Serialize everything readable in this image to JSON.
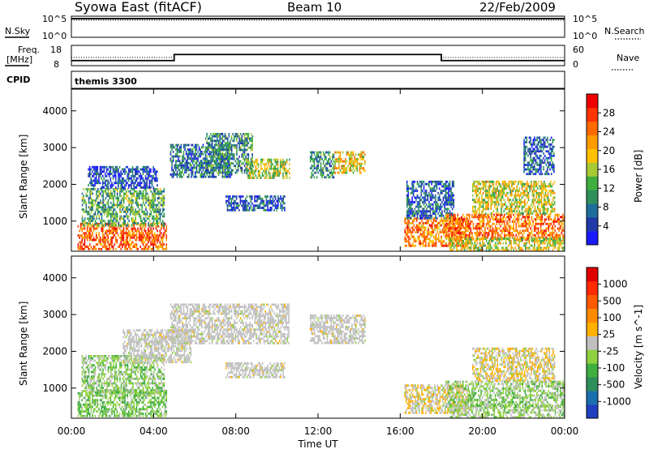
{
  "header": {
    "station": "Syowa East (fitACF)",
    "beam": "Beam 10",
    "date": "22/Feb/2009"
  },
  "labels": {
    "nsky": "N.Sky",
    "nsearch": "N.Search",
    "freq_line1": "Freq.",
    "freq_line2": "[MHz]",
    "nave": "Nave",
    "cpid": "CPID",
    "cpid_value": "themis 3300",
    "nsky_top": "10^5",
    "nsky_bottom": "10^0",
    "nsearch_top": "10^5",
    "nsearch_bottom": "10^0",
    "freq_top": "18",
    "freq_bottom": "8",
    "nave_top": "60",
    "nave_bottom": "0"
  },
  "colors": {
    "power_scale": [
      "#1a1aff",
      "#203aa8",
      "#1f6e99",
      "#2f8f5a",
      "#3fae3f",
      "#a7c934",
      "#ffc000",
      "#ff9a00",
      "#ff6a00",
      "#ff3300",
      "#ee0000"
    ],
    "velocity_scale": [
      "#2040c0",
      "#1a6fb0",
      "#2f8f5a",
      "#3fae3f",
      "#8fd13f",
      "#c0c0c0",
      "#ffb000",
      "#ff8a00",
      "#ff5a00",
      "#ff2a00",
      "#e00000"
    ]
  },
  "chart_data": [
    {
      "type": "line",
      "panel": "N.Sky / N.Search",
      "x": [
        "00:00",
        "24:00"
      ],
      "series": [
        {
          "name": "N.Sky",
          "values": [
            5,
            5
          ]
        },
        {
          "name": "N.Search",
          "values": [
            5,
            5
          ]
        }
      ],
      "ylim_labels": [
        "10^0",
        "10^5"
      ]
    },
    {
      "type": "line",
      "panel": "Freq. / Nave",
      "series": [
        {
          "name": "Freq.",
          "x": [
            0,
            5,
            5,
            18,
            18,
            24
          ],
          "values": [
            10.5,
            10.5,
            13.5,
            13.5,
            10.5,
            10.5
          ]
        },
        {
          "name": "Nave",
          "x": [
            0,
            5,
            5,
            18,
            18,
            24
          ],
          "values": [
            22,
            22,
            30,
            30,
            22,
            22
          ]
        }
      ],
      "ylim_freq": [
        8,
        18
      ],
      "ylim_nave": [
        0,
        60
      ]
    },
    {
      "type": "heatmap",
      "panel": "Power",
      "ylabel": "Slant Range [km]",
      "xlabel": "Time UT",
      "x_ticks": [
        "00:00",
        "04:00",
        "08:00",
        "12:00",
        "16:00",
        "20:00",
        "00:00"
      ],
      "y_ticks": [
        1000,
        2000,
        3000,
        4000
      ],
      "ylim": [
        180,
        4590
      ],
      "xlim": [
        0,
        24
      ],
      "colorbar": {
        "label": "Power [dB]",
        "ticks": [
          "4",
          "8",
          "12",
          "16",
          "20",
          "24",
          "28"
        ],
        "range": [
          0,
          30
        ]
      },
      "regions": [
        {
          "t0": 0.3,
          "t1": 4.6,
          "r0": 250,
          "r1": 950,
          "v": 24
        },
        {
          "t0": 0.5,
          "t1": 4.5,
          "r0": 900,
          "r1": 1900,
          "v": 11
        },
        {
          "t0": 0.8,
          "t1": 4.2,
          "r0": 1900,
          "r1": 2500,
          "v": 4
        },
        {
          "t0": 4.8,
          "t1": 7.8,
          "r0": 2200,
          "r1": 3100,
          "v": 7
        },
        {
          "t0": 6.5,
          "t1": 8.8,
          "r0": 2300,
          "r1": 3400,
          "v": 9
        },
        {
          "t0": 8.5,
          "t1": 10.6,
          "r0": 2200,
          "r1": 2700,
          "v": 15
        },
        {
          "t0": 7.5,
          "t1": 10.4,
          "r0": 1300,
          "r1": 1700,
          "v": 6
        },
        {
          "t0": 11.6,
          "t1": 12.8,
          "r0": 2200,
          "r1": 2900,
          "v": 9
        },
        {
          "t0": 12.8,
          "t1": 14.3,
          "r0": 2300,
          "r1": 2900,
          "v": 18
        },
        {
          "t0": 16.2,
          "t1": 19.3,
          "r0": 350,
          "r1": 1100,
          "v": 22
        },
        {
          "t0": 16.3,
          "t1": 18.6,
          "r0": 1100,
          "r1": 2100,
          "v": 6
        },
        {
          "t0": 18.2,
          "t1": 24.0,
          "r0": 500,
          "r1": 1200,
          "v": 23
        },
        {
          "t0": 19.5,
          "t1": 23.5,
          "r0": 1200,
          "r1": 2100,
          "v": 16
        },
        {
          "t0": 18.4,
          "t1": 24.0,
          "r0": 200,
          "r1": 550,
          "v": 16
        },
        {
          "t0": 22.0,
          "t1": 23.5,
          "r0": 2300,
          "r1": 3300,
          "v": 6
        }
      ]
    },
    {
      "type": "heatmap",
      "panel": "Velocity",
      "ylabel": "Slant Range [km]",
      "xlabel": "Time UT",
      "x_ticks": [
        "00:00",
        "04:00",
        "08:00",
        "12:00",
        "16:00",
        "20:00",
        "00:00"
      ],
      "y_ticks": [
        1000,
        2000,
        3000,
        4000
      ],
      "ylim": [
        180,
        4590
      ],
      "xlim": [
        0,
        24
      ],
      "colorbar": {
        "label": "Velocity [m s^-1]",
        "ticks": [
          "1000",
          "500",
          "100",
          "25",
          "-25",
          "-100",
          "-500",
          "-1000"
        ],
        "range": [
          -1200,
          1200
        ]
      },
      "regions": [
        {
          "t0": 0.3,
          "t1": 4.6,
          "r0": 250,
          "r1": 950,
          "v": -300
        },
        {
          "t0": 0.5,
          "t1": 4.5,
          "r0": 900,
          "r1": 1900,
          "v": -200
        },
        {
          "t0": 2.5,
          "t1": 5.8,
          "r0": 1700,
          "r1": 2600,
          "v": 0
        },
        {
          "t0": 4.8,
          "t1": 10.6,
          "r0": 2200,
          "r1": 3300,
          "v": 0
        },
        {
          "t0": 7.5,
          "t1": 10.4,
          "r0": 1300,
          "r1": 1700,
          "v": 0
        },
        {
          "t0": 11.6,
          "t1": 14.3,
          "r0": 2200,
          "r1": 3000,
          "v": 0
        },
        {
          "t0": 16.2,
          "t1": 19.3,
          "r0": 350,
          "r1": 1100,
          "v": 80
        },
        {
          "t0": 18.2,
          "t1": 24.0,
          "r0": 500,
          "r1": 1200,
          "v": -200
        },
        {
          "t0": 19.5,
          "t1": 23.5,
          "r0": 1200,
          "r1": 2100,
          "v": 60
        },
        {
          "t0": 18.4,
          "t1": 24.0,
          "r0": 200,
          "r1": 550,
          "v": -150
        }
      ]
    }
  ]
}
